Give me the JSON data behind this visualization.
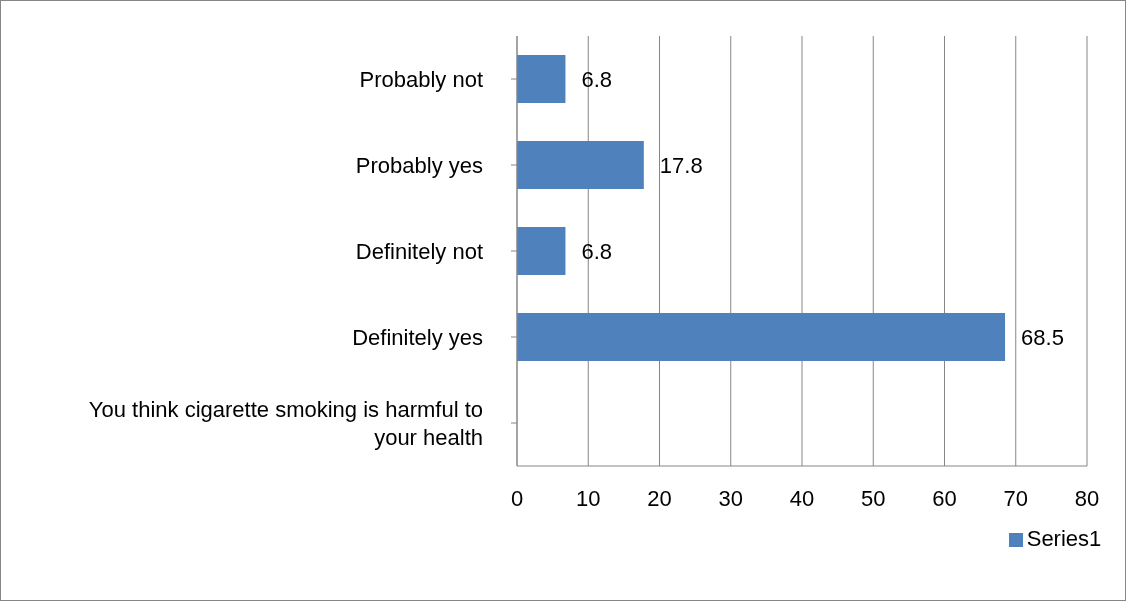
{
  "chart_data": {
    "type": "bar",
    "orientation": "horizontal",
    "categories": [
      "Probably not",
      "Probably yes",
      "Definitely not",
      "Definitely yes",
      "You think cigarette smoking is harmful to your health"
    ],
    "series": [
      {
        "name": "Series1",
        "color": "#4f81bd",
        "values": [
          6.8,
          17.8,
          6.8,
          68.5,
          null
        ]
      }
    ],
    "xlim": [
      0,
      80
    ],
    "xticks": [
      0,
      10,
      20,
      30,
      40,
      50,
      60,
      70,
      80
    ],
    "grid": "x",
    "legend": "bottom",
    "data_labels": true
  }
}
